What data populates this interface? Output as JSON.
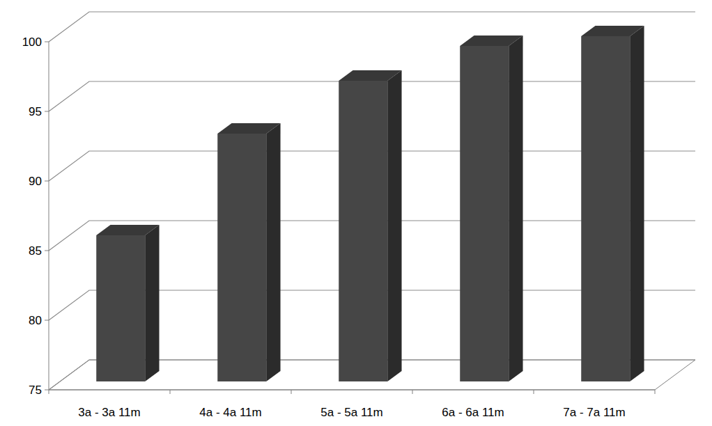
{
  "chart_data": {
    "type": "bar",
    "categories": [
      "3a - 3a 11m",
      "4a - 4a 11m",
      "5a - 5a 11m",
      "6a - 6a 11m",
      "7a - 7a 11m"
    ],
    "values": [
      85.5,
      92.8,
      96.6,
      99.1,
      99.8
    ],
    "color": "#464646",
    "ylim": [
      75,
      100
    ],
    "yticks": [
      75,
      80,
      85,
      90,
      95,
      100
    ],
    "grid": true
  }
}
